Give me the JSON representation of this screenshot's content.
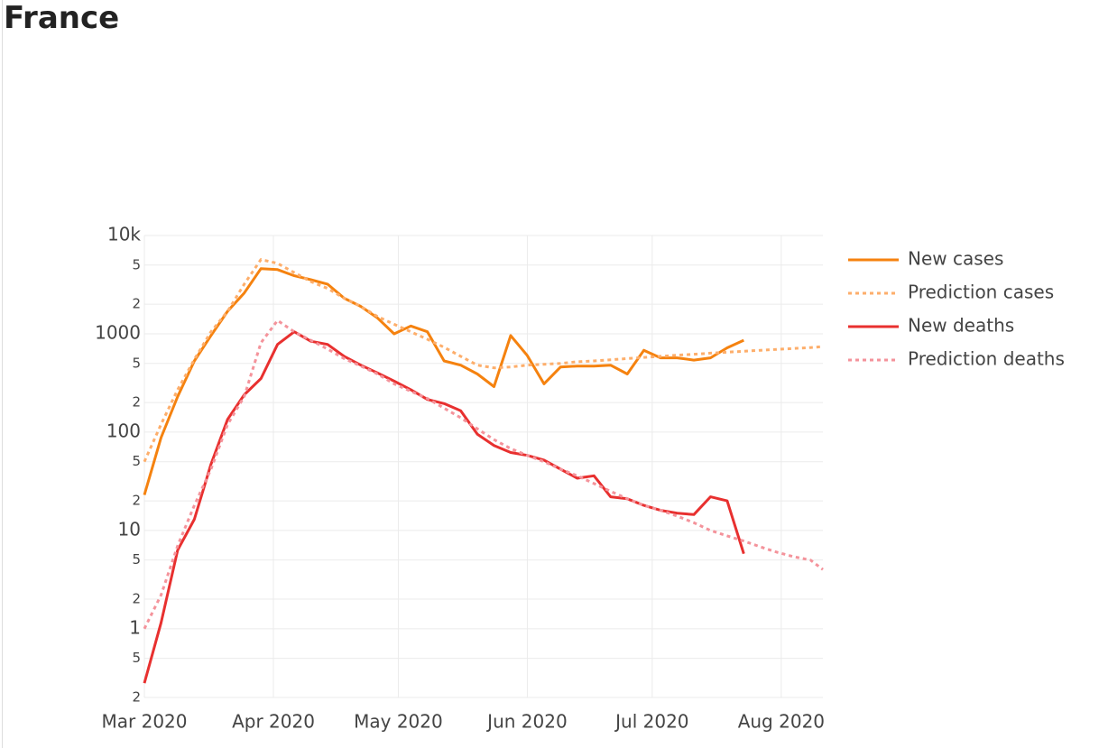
{
  "chart_data": {
    "type": "line",
    "title": "France",
    "x": [
      "2020-03-01",
      "2020-03-05",
      "2020-03-09",
      "2020-03-13",
      "2020-03-17",
      "2020-03-21",
      "2020-03-25",
      "2020-03-29",
      "2020-04-02",
      "2020-04-06",
      "2020-04-10",
      "2020-04-14",
      "2020-04-18",
      "2020-04-22",
      "2020-04-26",
      "2020-04-30",
      "2020-05-04",
      "2020-05-08",
      "2020-05-12",
      "2020-05-16",
      "2020-05-20",
      "2020-05-24",
      "2020-05-28",
      "2020-06-01",
      "2020-06-05",
      "2020-06-09",
      "2020-06-13",
      "2020-06-17",
      "2020-06-21",
      "2020-06-25",
      "2020-06-29",
      "2020-07-03",
      "2020-07-07",
      "2020-07-11",
      "2020-07-15",
      "2020-07-19",
      "2020-07-23",
      "2020-07-27",
      "2020-07-31",
      "2020-08-04",
      "2020-08-08",
      "2020-08-11"
    ],
    "series": [
      {
        "name": "New cases",
        "color": "#f5820f",
        "dash": false,
        "values": [
          23,
          88,
          230,
          530,
          960,
          1700,
          2600,
          4600,
          4500,
          3900,
          3550,
          3200,
          2300,
          1900,
          1450,
          1000,
          1200,
          1050,
          530,
          480,
          390,
          290,
          960,
          600,
          310,
          460,
          470,
          470,
          480,
          390,
          680,
          570,
          570,
          540,
          570,
          720,
          860,
          null,
          null,
          null,
          null,
          null
        ]
      },
      {
        "name": "Prediction cases",
        "color": "#fdae6b",
        "dash": true,
        "values": [
          50,
          120,
          270,
          550,
          1050,
          1700,
          3200,
          5700,
          5200,
          4200,
          3400,
          2900,
          2300,
          1900,
          1500,
          1250,
          1050,
          880,
          730,
          590,
          480,
          450,
          460,
          480,
          490,
          500,
          520,
          530,
          545,
          560,
          575,
          590,
          605,
          620,
          635,
          650,
          665,
          680,
          695,
          710,
          725,
          740
        ]
      },
      {
        "name": "New deaths",
        "color": "#e8302f",
        "dash": false,
        "values": [
          0.28,
          1.15,
          6.3,
          13,
          47,
          135,
          240,
          350,
          780,
          1050,
          840,
          780,
          590,
          480,
          400,
          330,
          270,
          215,
          195,
          165,
          95,
          73,
          62,
          58,
          52,
          42,
          34,
          36,
          22,
          21,
          18,
          16,
          15,
          14.5,
          22,
          20,
          5.8,
          null,
          null,
          null,
          null,
          null
        ]
      },
      {
        "name": "Prediction deaths",
        "color": "#f4939b",
        "dash": true,
        "values": [
          1,
          2.2,
          7,
          18,
          42,
          120,
          230,
          810,
          1370,
          1050,
          860,
          700,
          560,
          470,
          390,
          310,
          260,
          220,
          175,
          140,
          108,
          84,
          68,
          58,
          50,
          42,
          36,
          30,
          25,
          21,
          18,
          16,
          14,
          12,
          10,
          8.8,
          7.8,
          6.8,
          6,
          5.4,
          5,
          4
        ]
      }
    ],
    "xlim": [
      "2020-03-01",
      "2020-08-11"
    ],
    "xticks": [
      {
        "value": "2020-03-01",
        "label": "Mar 2020"
      },
      {
        "value": "2020-04-01",
        "label": "Apr 2020"
      },
      {
        "value": "2020-05-01",
        "label": "May 2020"
      },
      {
        "value": "2020-06-01",
        "label": "Jun 2020"
      },
      {
        "value": "2020-07-01",
        "label": "Jul 2020"
      },
      {
        "value": "2020-08-01",
        "label": "Aug 2020"
      }
    ],
    "ylim": [
      0.2,
      10000
    ],
    "yscale": "log",
    "yticks": [
      {
        "value": 10000,
        "label": "10k"
      },
      {
        "value": 5000,
        "label": "5"
      },
      {
        "value": 2000,
        "label": "2"
      },
      1000,
      {
        "value": 500,
        "label": "5"
      },
      {
        "value": 200,
        "label": "2"
      },
      100,
      {
        "value": 50,
        "label": "5"
      },
      {
        "value": 20,
        "label": "2"
      },
      10,
      5,
      2,
      1,
      {
        "value": 0.5,
        "label": "5"
      },
      {
        "value": 0.2,
        "label": "2"
      }
    ],
    "grid": true,
    "legend": "right"
  }
}
